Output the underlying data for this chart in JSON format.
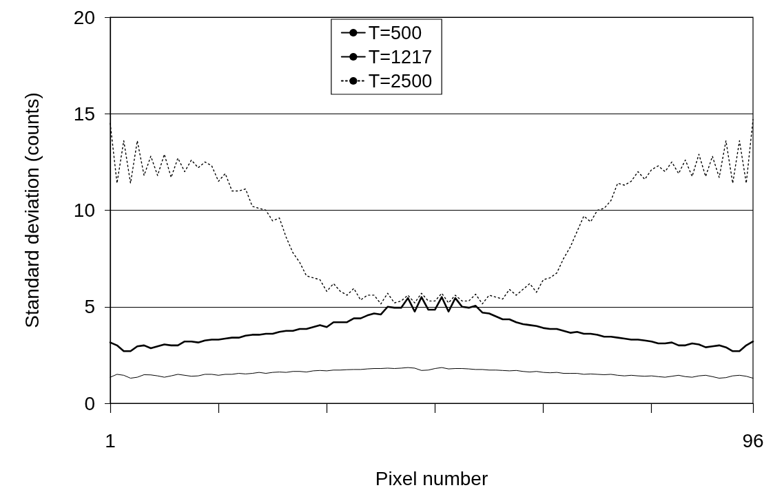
{
  "chart_data": {
    "type": "line",
    "xlabel": "Pixel number",
    "ylabel": "Standard deviation (counts)",
    "x": [
      1,
      2,
      3,
      4,
      5,
      6,
      7,
      8,
      9,
      10,
      11,
      12,
      13,
      14,
      15,
      16,
      17,
      18,
      19,
      20,
      21,
      22,
      23,
      24,
      25,
      26,
      27,
      28,
      29,
      30,
      31,
      32,
      33,
      34,
      35,
      36,
      37,
      38,
      39,
      40,
      41,
      42,
      43,
      44,
      45,
      46,
      47,
      48,
      49,
      50,
      51,
      52,
      53,
      54,
      55,
      56,
      57,
      58,
      59,
      60,
      61,
      62,
      63,
      64,
      65,
      66,
      67,
      68,
      69,
      70,
      71,
      72,
      73,
      74,
      75,
      76,
      77,
      78,
      79,
      80,
      81,
      82,
      83,
      84,
      85,
      86,
      87,
      88,
      89,
      90,
      91,
      92,
      93,
      94,
      95,
      96
    ],
    "series": [
      {
        "name": "T=500",
        "color": "#000000",
        "line_style": "solid",
        "values": [
          1.35,
          1.5,
          1.45,
          1.3,
          1.35,
          1.48,
          1.47,
          1.42,
          1.35,
          1.42,
          1.5,
          1.45,
          1.4,
          1.42,
          1.5,
          1.5,
          1.45,
          1.5,
          1.5,
          1.55,
          1.52,
          1.55,
          1.6,
          1.55,
          1.6,
          1.62,
          1.6,
          1.65,
          1.65,
          1.62,
          1.68,
          1.7,
          1.68,
          1.72,
          1.72,
          1.74,
          1.75,
          1.75,
          1.78,
          1.8,
          1.8,
          1.82,
          1.8,
          1.82,
          1.85,
          1.82,
          1.7,
          1.72,
          1.8,
          1.85,
          1.78,
          1.8,
          1.8,
          1.78,
          1.75,
          1.75,
          1.72,
          1.72,
          1.7,
          1.68,
          1.7,
          1.65,
          1.62,
          1.65,
          1.6,
          1.58,
          1.6,
          1.55,
          1.55,
          1.55,
          1.5,
          1.52,
          1.5,
          1.48,
          1.5,
          1.45,
          1.42,
          1.45,
          1.42,
          1.4,
          1.42,
          1.38,
          1.35,
          1.4,
          1.45,
          1.38,
          1.35,
          1.42,
          1.45,
          1.38,
          1.3,
          1.33,
          1.42,
          1.45,
          1.4,
          1.3
        ]
      },
      {
        "name": "T=1217",
        "color": "#000000",
        "line_style": "solid",
        "values": [
          3.15,
          3.0,
          2.7,
          2.7,
          2.95,
          3.0,
          2.85,
          2.95,
          3.05,
          3.0,
          3.0,
          3.2,
          3.2,
          3.15,
          3.25,
          3.3,
          3.3,
          3.35,
          3.4,
          3.4,
          3.5,
          3.55,
          3.55,
          3.6,
          3.6,
          3.7,
          3.75,
          3.75,
          3.85,
          3.85,
          3.95,
          4.05,
          3.95,
          4.2,
          4.2,
          4.2,
          4.4,
          4.4,
          4.55,
          4.65,
          4.6,
          5.0,
          4.95,
          4.95,
          5.45,
          4.75,
          5.5,
          4.85,
          4.85,
          5.5,
          4.75,
          5.45,
          5.0,
          4.95,
          5.05,
          4.7,
          4.65,
          4.5,
          4.35,
          4.35,
          4.2,
          4.1,
          4.05,
          4.0,
          3.9,
          3.85,
          3.85,
          3.75,
          3.65,
          3.7,
          3.6,
          3.6,
          3.55,
          3.45,
          3.45,
          3.4,
          3.35,
          3.3,
          3.3,
          3.25,
          3.2,
          3.1,
          3.1,
          3.15,
          3.0,
          3.0,
          3.1,
          3.05,
          2.9,
          2.95,
          3.0,
          2.9,
          2.7,
          2.7,
          3.0,
          3.2
        ]
      },
      {
        "name": "T=2500",
        "color": "#000000",
        "line_style": "dotted",
        "values": [
          14.5,
          11.4,
          13.6,
          11.4,
          13.6,
          11.8,
          12.8,
          11.8,
          12.9,
          11.7,
          12.7,
          12.0,
          12.6,
          12.2,
          12.5,
          12.3,
          11.5,
          11.9,
          11.0,
          11.0,
          11.1,
          10.2,
          10.1,
          10.0,
          9.45,
          9.6,
          8.6,
          7.8,
          7.3,
          6.6,
          6.5,
          6.4,
          5.8,
          6.2,
          5.8,
          5.6,
          5.95,
          5.35,
          5.6,
          5.6,
          5.15,
          5.7,
          5.2,
          5.3,
          5.6,
          5.2,
          5.7,
          5.3,
          5.3,
          5.7,
          5.2,
          5.6,
          5.3,
          5.3,
          5.65,
          5.15,
          5.6,
          5.5,
          5.4,
          5.9,
          5.6,
          5.9,
          6.2,
          5.75,
          6.4,
          6.5,
          6.75,
          7.5,
          8.1,
          8.9,
          9.7,
          9.4,
          10.0,
          10.1,
          10.5,
          11.4,
          11.3,
          11.5,
          12.0,
          11.6,
          12.1,
          12.3,
          12.0,
          12.5,
          11.9,
          12.6,
          11.75,
          12.9,
          11.75,
          12.8,
          11.7,
          13.6,
          11.4,
          13.6,
          11.4,
          14.7
        ]
      }
    ],
    "xlim": [
      1,
      96
    ],
    "xticks": [
      1,
      {
        "value": 17,
        "label": null
      },
      {
        "value": 33,
        "label": null
      },
      {
        "value": 49,
        "label": null
      },
      {
        "value": 65,
        "label": null
      },
      {
        "value": 81,
        "label": null
      },
      96
    ],
    "ylim": [
      0,
      20
    ],
    "yticks": [
      0,
      5,
      10,
      15,
      20
    ],
    "grid": "y",
    "legend": "top",
    "marker": "none"
  }
}
